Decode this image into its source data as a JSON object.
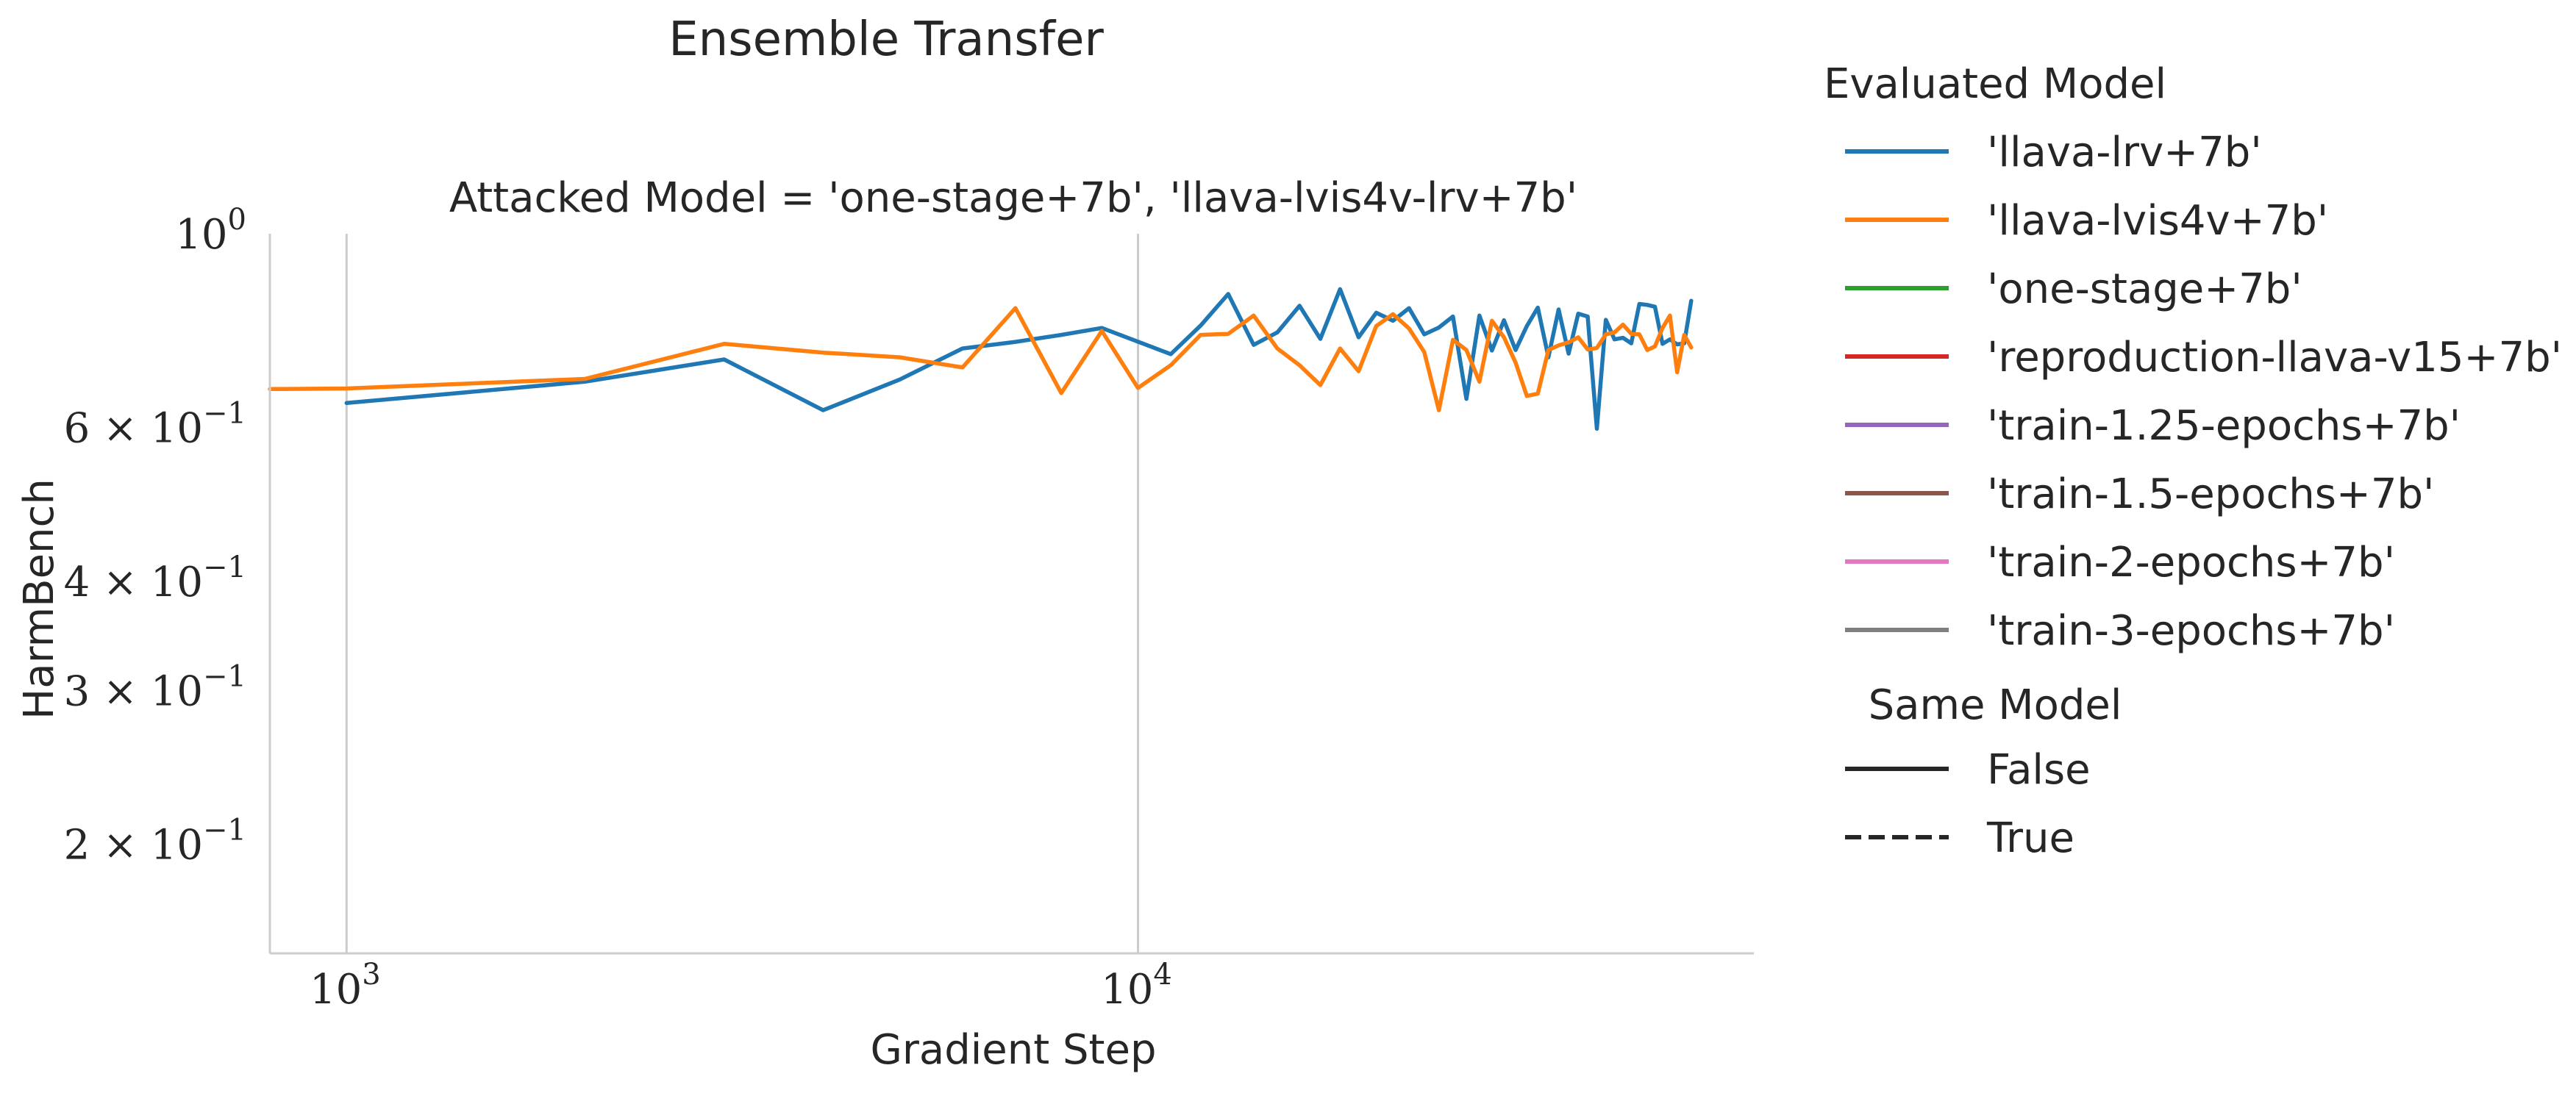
{
  "chart_data": {
    "type": "line",
    "suptitle": "Ensemble Transfer",
    "title": "Attacked Model = 'one-stage+7b', 'llava-lvis4v-lrv+7b'",
    "xlabel": "Gradient Step",
    "ylabel": "HarmBench",
    "xscale": "log",
    "yscale": "log",
    "xlim": [
      800,
      60000
    ],
    "ylim": [
      0.15,
      1.0
    ],
    "x_ticks": [
      {
        "value": 1000,
        "base": "10",
        "exp": "3"
      },
      {
        "value": 10000,
        "base": "10",
        "exp": "4"
      }
    ],
    "y_ticks": [
      {
        "value": 1.0,
        "base": "10",
        "exp": "0"
      },
      {
        "value": 0.6,
        "mant": "6",
        "base": "10",
        "exp": "−1"
      },
      {
        "value": 0.4,
        "mant": "4",
        "base": "10",
        "exp": "−1"
      },
      {
        "value": 0.3,
        "mant": "3",
        "base": "10",
        "exp": "−1"
      },
      {
        "value": 0.2,
        "mant": "2",
        "base": "10",
        "exp": "−1"
      }
    ],
    "grid": "vertical major only",
    "legend": {
      "placement": "outside-right",
      "hue_title": "Evaluated Model",
      "hue_entries": [
        {
          "label": "'llava-lrv+7b'",
          "color": "#1f77b4"
        },
        {
          "label": "'llava-lvis4v+7b'",
          "color": "#ff7f0e"
        },
        {
          "label": "'one-stage+7b'",
          "color": "#2ca02c"
        },
        {
          "label": "'reproduction-llava-v15+7b'",
          "color": "#d62728"
        },
        {
          "label": "'train-1.25-epochs+7b'",
          "color": "#9467bd"
        },
        {
          "label": "'train-1.5-epochs+7b'",
          "color": "#8c564b"
        },
        {
          "label": "'train-2-epochs+7b'",
          "color": "#e377c2"
        },
        {
          "label": "'train-3-epochs+7b'",
          "color": "#7f7f7f"
        }
      ],
      "style_title": "Same Model",
      "style_entries": [
        {
          "label": "False",
          "dash": "solid"
        },
        {
          "label": "True",
          "dash": "dashed"
        }
      ]
    },
    "series": [
      {
        "name": "'llava-lrv+7b'",
        "color": "#1f77b4",
        "x": [
          1000,
          2000,
          3000,
          4000,
          5000,
          6000,
          7000,
          8000,
          9000,
          11000,
          12000,
          13000,
          14000,
          15000,
          16000,
          17000,
          18000,
          19000,
          20000,
          21000,
          22000,
          23000,
          24000,
          25000,
          26000,
          27000,
          28000,
          29000,
          30000,
          31000,
          32000,
          33000,
          34000,
          35000,
          36000,
          37000,
          38000,
          39000,
          40000,
          41000,
          42000,
          43000,
          44000,
          45000,
          46000,
          47000,
          48000,
          49000,
          50000
        ],
        "y": [
          0.64,
          0.677,
          0.718,
          0.628,
          0.681,
          0.739,
          0.752,
          0.766,
          0.78,
          0.728,
          0.785,
          0.853,
          0.746,
          0.771,
          0.827,
          0.758,
          0.864,
          0.761,
          0.812,
          0.795,
          0.822,
          0.767,
          0.781,
          0.804,
          0.647,
          0.806,
          0.735,
          0.796,
          0.736,
          0.784,
          0.823,
          0.722,
          0.819,
          0.729,
          0.81,
          0.804,
          0.598,
          0.797,
          0.757,
          0.76,
          0.749,
          0.831,
          0.829,
          0.825,
          0.748,
          0.757,
          0.747,
          0.749,
          0.838
        ]
      },
      {
        "name": "'llava-lvis4v+7b'",
        "color": "#ff7f0e",
        "x": [
          800,
          1000,
          2000,
          3000,
          4000,
          5000,
          6000,
          7000,
          8000,
          9000,
          10000,
          11000,
          12000,
          13000,
          14000,
          15000,
          16000,
          17000,
          18000,
          19000,
          20000,
          21000,
          22000,
          23000,
          24000,
          25000,
          26000,
          27000,
          28000,
          29000,
          30000,
          31000,
          32000,
          33000,
          34000,
          35000,
          36000,
          37000,
          38000,
          39000,
          40000,
          41000,
          42000,
          43000,
          44000,
          45000,
          46000,
          47000,
          48000,
          49000,
          50000
        ],
        "y": [
          0.664,
          0.665,
          0.682,
          0.748,
          0.731,
          0.722,
          0.703,
          0.822,
          0.657,
          0.774,
          0.666,
          0.707,
          0.766,
          0.768,
          0.806,
          0.739,
          0.707,
          0.671,
          0.739,
          0.696,
          0.784,
          0.809,
          0.779,
          0.732,
          0.628,
          0.756,
          0.736,
          0.677,
          0.795,
          0.761,
          0.712,
          0.652,
          0.656,
          0.736,
          0.745,
          0.751,
          0.761,
          0.737,
          0.74,
          0.767,
          0.771,
          0.787,
          0.768,
          0.767,
          0.736,
          0.743,
          0.78,
          0.806,
          0.694,
          0.766,
          0.741
        ]
      }
    ]
  }
}
